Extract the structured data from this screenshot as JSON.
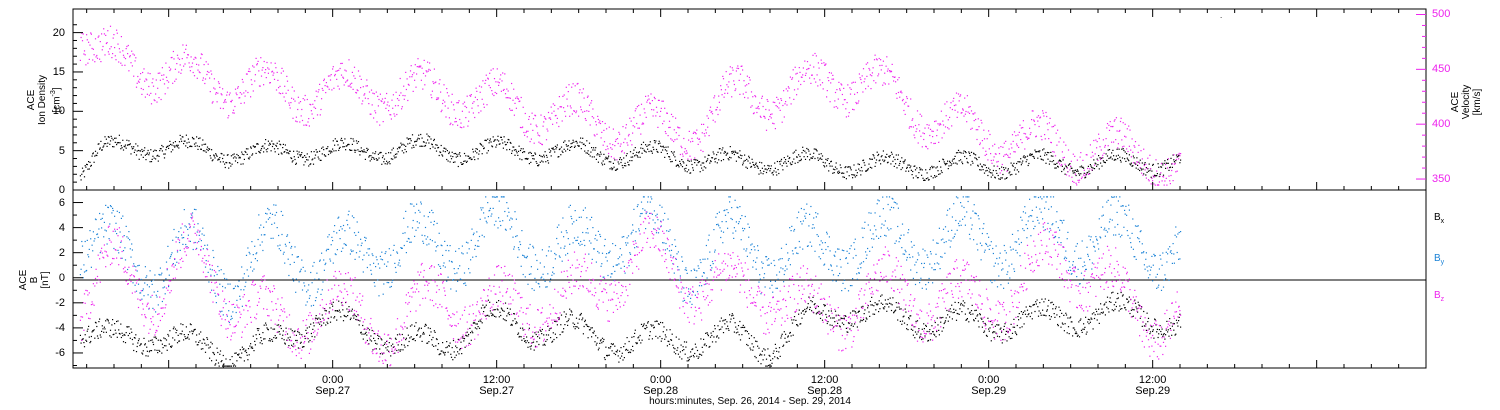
{
  "figure": {
    "xlabel": "hours:minutes, Sep. 26, 2014 - Sep. 29, 2014",
    "x_ticks": [
      {
        "time": "0:00",
        "date": "Sep.27"
      },
      {
        "time": "12:00",
        "date": "Sep.27"
      },
      {
        "time": "0:00",
        "date": "Sep.28"
      },
      {
        "time": "12:00",
        "date": "Sep.28"
      },
      {
        "time": "0:00",
        "date": "Sep.29"
      },
      {
        "time": "12:00",
        "date": "Sep.29"
      }
    ]
  },
  "top_panel": {
    "left_label": {
      "line1": "ACE",
      "line2": "Ion Density",
      "unit_prefix": "[cm",
      "unit_sup": "-3",
      "unit_suffix": "]"
    },
    "right_label": {
      "line1": "ACE",
      "line2": "Velocity",
      "unit": "[km/s]"
    }
  },
  "bottom_panel": {
    "left_label": {
      "line1": "ACE",
      "line2": "B",
      "unit": "[nT]"
    },
    "legend": [
      {
        "base": "B",
        "sub": "x",
        "color": "#000000"
      },
      {
        "base": "B",
        "sub": "y",
        "color": "#1a82d6"
      },
      {
        "base": "B",
        "sub": "z",
        "color": "#ee22ee"
      }
    ]
  },
  "chart_data": [
    {
      "type": "scatter",
      "title": "",
      "xlabel": "hours:minutes, Sep. 26, 2014 - Sep. 29, 2014",
      "xlim": [
        "2014-09-26T05:00",
        "2014-09-30T08:00"
      ],
      "x_hours_note": "",
      "ylabel": "ACE Ion Density [cm-3]",
      "ylim": [
        0,
        23
      ],
      "yticks": [
        0,
        5,
        10,
        15,
        20
      ],
      "y2label": "ACE Velocity [km/s]",
      "y2lim": [
        340,
        505
      ],
      "y2ticks": [
        350,
        400,
        450,
        500
      ],
      "grid": false,
      "series": [
        {
          "name": "",
          "axis": "left",
          "color": "#000000",
          "x": [
            "2014-09-26T05:30",
            "2014-09-26T07:00",
            "2014-09-26T09:00",
            "2014-09-26T12:00",
            "2014-09-26T15:00",
            "2014-09-26T18:00",
            "2014-09-26T21:00",
            "2014-09-27T00:00",
            "2014-09-27T03:00",
            "2014-09-27T06:00",
            "2014-09-27T09:00",
            "2014-09-27T12:00",
            "2014-09-27T15:00",
            "2014-09-27T18:00",
            "2014-09-27T21:00",
            "2014-09-28T00:00",
            "2014-09-28T03:00",
            "2014-09-28T06:00",
            "2014-09-28T09:00",
            "2014-09-28T12:00",
            "2014-09-28T15:00",
            "2014-09-28T18:00",
            "2014-09-28T21:00",
            "2014-09-29T00:00",
            "2014-09-29T03:00",
            "2014-09-29T06:00",
            "2014-09-29T09:00",
            "2014-09-29T12:00",
            "2014-09-29T14:00"
          ],
          "y": [
            2.5,
            5.0,
            5.5,
            5.5,
            5.0,
            4.5,
            5.0,
            5.0,
            5.0,
            5.5,
            5.0,
            5.0,
            5.0,
            5.0,
            4.5,
            4.5,
            4.0,
            3.5,
            3.8,
            3.5,
            3.2,
            3.2,
            3.2,
            3.2,
            3.4,
            3.4,
            3.5,
            3.6,
            3.8
          ]
        },
        {
          "name": "",
          "axis": "right",
          "color": "#ee22ee",
          "x": [
            "2014-09-26T05:30",
            "2014-09-26T07:00",
            "2014-09-26T09:00",
            "2014-09-26T12:00",
            "2014-09-26T15:00",
            "2014-09-26T18:00",
            "2014-09-26T21:00",
            "2014-09-27T00:00",
            "2014-09-27T03:00",
            "2014-09-27T06:00",
            "2014-09-27T09:00",
            "2014-09-27T12:00",
            "2014-09-27T15:00",
            "2014-09-27T18:00",
            "2014-09-27T21:00",
            "2014-09-28T00:00",
            "2014-09-28T03:00",
            "2014-09-28T06:00",
            "2014-09-28T09:00",
            "2014-09-28T12:00",
            "2014-09-28T15:00",
            "2014-09-28T18:00",
            "2014-09-28T21:00",
            "2014-09-29T00:00",
            "2014-09-29T03:00",
            "2014-09-29T06:00",
            "2014-09-29T09:00",
            "2014-09-29T12:00",
            "2014-09-29T14:00"
          ],
          "y": [
            485,
            460,
            455,
            448,
            440,
            435,
            430,
            430,
            432,
            428,
            428,
            420,
            412,
            405,
            398,
            395,
            400,
            430,
            425,
            440,
            440,
            420,
            400,
            390,
            385,
            378,
            375,
            375,
            355
          ]
        }
      ]
    },
    {
      "type": "scatter",
      "title": "",
      "xlabel": "hours:minutes, Sep. 26, 2014 - Sep. 29, 2014",
      "xlim": [
        "2014-09-26T05:00",
        "2014-09-30T08:00"
      ],
      "ylabel": "ACE B [nT]",
      "ylim": [
        -7.2,
        7.0
      ],
      "yticks": [
        -6,
        -4,
        -2,
        0,
        2,
        4,
        6
      ],
      "reference_line": 0,
      "grid": false,
      "series": [
        {
          "name": "Bx",
          "color": "#000000",
          "x": [
            "2014-09-26T05:30",
            "2014-09-26T08:00",
            "2014-09-26T11:00",
            "2014-09-26T14:00",
            "2014-09-26T17:00",
            "2014-09-26T20:00",
            "2014-09-26T23:00",
            "2014-09-27T02:00",
            "2014-09-27T05:00",
            "2014-09-27T08:00",
            "2014-09-27T11:00",
            "2014-09-27T14:00",
            "2014-09-27T17:00",
            "2014-09-27T20:00",
            "2014-09-27T23:00",
            "2014-09-28T02:00",
            "2014-09-28T05:00",
            "2014-09-28T08:00",
            "2014-09-28T11:00",
            "2014-09-28T14:00",
            "2014-09-28T17:00",
            "2014-09-28T20:00",
            "2014-09-28T23:00",
            "2014-09-29T02:00",
            "2014-09-29T05:00",
            "2014-09-29T08:00",
            "2014-09-29T11:00",
            "2014-09-29T14:00"
          ],
          "y": [
            -4,
            -5,
            -4.5,
            -5.5,
            -6,
            -5,
            -3,
            -4,
            -5,
            -5.5,
            -3,
            -4,
            -4,
            -5,
            -5,
            -5,
            -4.5,
            -5.5,
            -3,
            -2.5,
            -3,
            -3.5,
            -3.5,
            -3.5,
            -3,
            -3,
            -2.5,
            -4
          ]
        },
        {
          "name": "By",
          "color": "#1a82d6",
          "x": [
            "2014-09-26T05:30",
            "2014-09-26T08:00",
            "2014-09-26T11:00",
            "2014-09-26T14:00",
            "2014-09-26T17:00",
            "2014-09-26T20:00",
            "2014-09-26T23:00",
            "2014-09-27T02:00",
            "2014-09-27T05:00",
            "2014-09-27T08:00",
            "2014-09-27T11:00",
            "2014-09-27T14:00",
            "2014-09-27T17:00",
            "2014-09-27T20:00",
            "2014-09-27T23:00",
            "2014-09-28T02:00",
            "2014-09-28T05:00",
            "2014-09-28T08:00",
            "2014-09-28T11:00",
            "2014-09-28T14:00",
            "2014-09-28T17:00",
            "2014-09-28T20:00",
            "2014-09-28T23:00",
            "2014-09-29T02:00",
            "2014-09-29T05:00",
            "2014-09-29T08:00",
            "2014-09-29T11:00",
            "2014-09-29T14:00"
          ],
          "y": [
            3,
            2,
            1,
            2,
            0,
            3,
            1,
            2,
            3,
            2,
            4,
            3,
            2,
            3,
            4,
            1,
            3,
            2,
            2,
            3,
            3,
            3,
            3,
            3,
            4,
            3,
            3,
            2
          ]
        },
        {
          "name": "Bz",
          "color": "#ee22ee",
          "x": [
            "2014-09-26T05:30",
            "2014-09-26T08:00",
            "2014-09-26T11:00",
            "2014-09-26T14:00",
            "2014-09-26T17:00",
            "2014-09-26T20:00",
            "2014-09-26T23:00",
            "2014-09-27T02:00",
            "2014-09-27T05:00",
            "2014-09-27T08:00",
            "2014-09-27T11:00",
            "2014-09-27T14:00",
            "2014-09-27T17:00",
            "2014-09-27T20:00",
            "2014-09-27T23:00",
            "2014-09-28T02:00",
            "2014-09-28T05:00",
            "2014-09-28T08:00",
            "2014-09-28T11:00",
            "2014-09-28T14:00",
            "2014-09-28T17:00",
            "2014-09-28T20:00",
            "2014-09-28T23:00",
            "2014-09-29T02:00",
            "2014-09-29T05:00",
            "2014-09-29T08:00",
            "2014-09-29T11:00",
            "2014-09-29T14:00"
          ],
          "y": [
            -2,
            1,
            -1,
            2,
            -2,
            -4,
            -2,
            -3,
            -4,
            -1,
            -3,
            -2,
            -2,
            0,
            2,
            0,
            -1,
            -1,
            -3,
            -2,
            -1,
            -2,
            -2,
            -1,
            2,
            0,
            -3,
            -3
          ]
        }
      ]
    }
  ]
}
